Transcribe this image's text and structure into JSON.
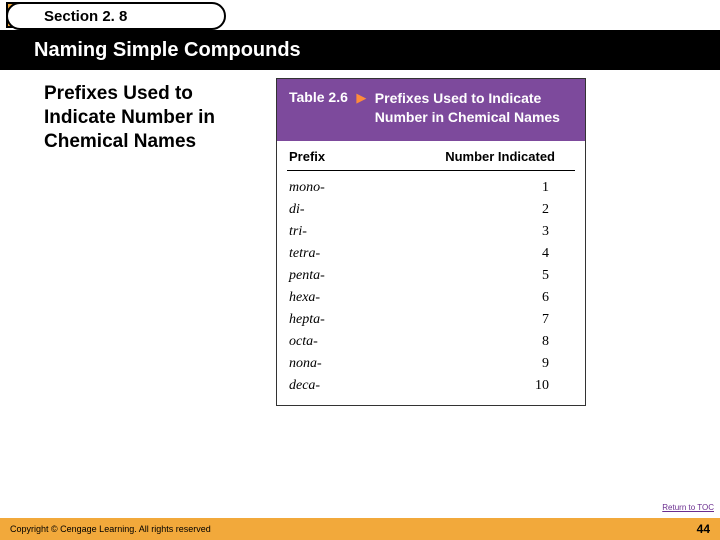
{
  "colors": {
    "accent_orange": "#f2a93b",
    "title_bg": "#000000",
    "table_header_bg": "#7d4a9c",
    "table_header_text": "#ffffff",
    "triangle": "#ff8c3a",
    "link": "#6a2d8f"
  },
  "section": {
    "label": "Section 2. 8"
  },
  "title": "Naming Simple Compounds",
  "body_heading": "Prefixes Used to Indicate Number in Chemical Names",
  "table": {
    "number_label": "Table 2.6",
    "title": "Prefixes Used to Indicate Number in Chemical Names",
    "columns": {
      "prefix": "Prefix",
      "number": "Number Indicated"
    },
    "rows": [
      {
        "prefix": "mono-",
        "number": "1"
      },
      {
        "prefix": "di-",
        "number": "2"
      },
      {
        "prefix": "tri-",
        "number": "3"
      },
      {
        "prefix": "tetra-",
        "number": "4"
      },
      {
        "prefix": "penta-",
        "number": "5"
      },
      {
        "prefix": "hexa-",
        "number": "6"
      },
      {
        "prefix": "hepta-",
        "number": "7"
      },
      {
        "prefix": "octa-",
        "number": "8"
      },
      {
        "prefix": "nona-",
        "number": "9"
      },
      {
        "prefix": "deca-",
        "number": "10"
      }
    ]
  },
  "toc_link": "Return to TOC",
  "footer": {
    "copyright": "Copyright © Cengage Learning. All rights reserved",
    "page": "44"
  }
}
